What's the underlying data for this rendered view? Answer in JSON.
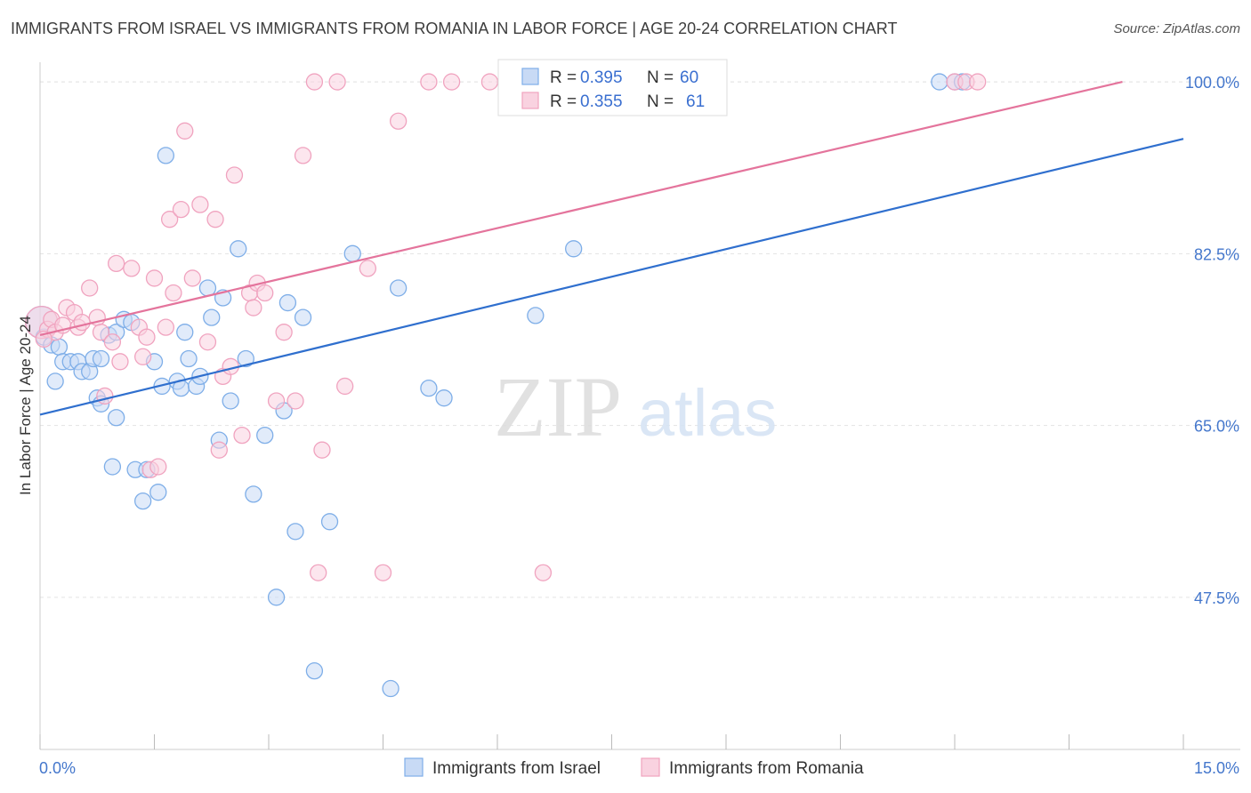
{
  "header": {
    "title": "IMMIGRANTS FROM ISRAEL VS IMMIGRANTS FROM ROMANIA IN LABOR FORCE | AGE 20-24 CORRELATION CHART",
    "source": "Source: ZipAtlas.com"
  },
  "watermark": {
    "zip": "ZIP",
    "atlas": "atlas"
  },
  "legend": {
    "r_label": "R =",
    "n_label": "N =",
    "israel": {
      "r": "0.395",
      "n": "60"
    },
    "romania": {
      "r": "0.355",
      "n": "61"
    }
  },
  "chart_data": {
    "type": "scatter",
    "title": "IMMIGRANTS FROM ISRAEL VS IMMIGRANTS FROM ROMANIA IN LABOR FORCE | AGE 20-24 CORRELATION CHART",
    "xlabel": "",
    "ylabel": "In Labor Force | Age 20-24",
    "xlim": [
      0,
      15
    ],
    "ylim": [
      32,
      102
    ],
    "x_tick_labels": [
      "0.0%",
      "15.0%"
    ],
    "y_ticks": [
      47.5,
      65.0,
      82.5,
      100.0
    ],
    "y_tick_labels": [
      "47.5%",
      "65.0%",
      "82.5%",
      "100.0%"
    ],
    "grid": true,
    "legend_position": "top-center",
    "series": [
      {
        "name": "Immigrants from Israel",
        "color": "#7eaee8",
        "fill": "#c8daf5",
        "trend_color": "#2f6fce",
        "trend": {
          "x": [
            0,
            15
          ],
          "y": [
            66.1,
            94.2
          ]
        },
        "points": [
          [
            0.02,
            75.5
          ],
          [
            0.05,
            74.0
          ],
          [
            0.15,
            73.2
          ],
          [
            0.25,
            73.0
          ],
          [
            0.2,
            69.5
          ],
          [
            0.3,
            71.5
          ],
          [
            0.4,
            71.5
          ],
          [
            0.5,
            71.5
          ],
          [
            0.55,
            70.5
          ],
          [
            0.65,
            70.5
          ],
          [
            0.7,
            71.8
          ],
          [
            0.8,
            71.8
          ],
          [
            0.75,
            67.8
          ],
          [
            0.8,
            67.2
          ],
          [
            0.9,
            74.2
          ],
          [
            1.0,
            74.5
          ],
          [
            1.0,
            65.8
          ],
          [
            0.95,
            60.8
          ],
          [
            1.1,
            75.8
          ],
          [
            1.2,
            75.5
          ],
          [
            1.25,
            60.5
          ],
          [
            1.4,
            60.5
          ],
          [
            1.35,
            57.3
          ],
          [
            1.5,
            71.5
          ],
          [
            1.55,
            58.2
          ],
          [
            1.6,
            69.0
          ],
          [
            1.65,
            92.5
          ],
          [
            1.8,
            69.5
          ],
          [
            1.85,
            68.8
          ],
          [
            1.9,
            74.5
          ],
          [
            1.95,
            71.8
          ],
          [
            2.05,
            69.0
          ],
          [
            2.1,
            70.0
          ],
          [
            2.2,
            79.0
          ],
          [
            2.25,
            76.0
          ],
          [
            2.35,
            63.5
          ],
          [
            2.4,
            78.0
          ],
          [
            2.5,
            67.5
          ],
          [
            2.6,
            83.0
          ],
          [
            2.7,
            71.8
          ],
          [
            2.8,
            58.0
          ],
          [
            2.95,
            64.0
          ],
          [
            3.1,
            47.5
          ],
          [
            3.2,
            66.5
          ],
          [
            3.25,
            77.5
          ],
          [
            3.35,
            54.2
          ],
          [
            3.45,
            76.0
          ],
          [
            3.6,
            40.0
          ],
          [
            3.8,
            55.2
          ],
          [
            4.1,
            82.5
          ],
          [
            4.6,
            38.2
          ],
          [
            4.7,
            79.0
          ],
          [
            5.1,
            68.8
          ],
          [
            5.3,
            67.8
          ],
          [
            6.5,
            76.2
          ],
          [
            7.0,
            83.0
          ],
          [
            8.4,
            100.0
          ],
          [
            11.8,
            100.0
          ],
          [
            12.0,
            100.0
          ],
          [
            12.1,
            100.0
          ]
        ]
      },
      {
        "name": "Immigrants from Romania",
        "color": "#f0a3bf",
        "fill": "#f9d2e0",
        "trend_color": "#e4749c",
        "trend": {
          "x": [
            0,
            14.2
          ],
          "y": [
            74.2,
            100.0
          ]
        },
        "points": [
          [
            0.02,
            75.5
          ],
          [
            0.1,
            74.8
          ],
          [
            0.15,
            75.8
          ],
          [
            0.2,
            74.5
          ],
          [
            0.3,
            75.2
          ],
          [
            0.35,
            77.0
          ],
          [
            0.45,
            76.5
          ],
          [
            0.5,
            75.0
          ],
          [
            0.55,
            75.5
          ],
          [
            0.65,
            79.0
          ],
          [
            0.75,
            76.0
          ],
          [
            0.8,
            74.5
          ],
          [
            0.85,
            68.0
          ],
          [
            0.95,
            73.5
          ],
          [
            1.0,
            81.5
          ],
          [
            1.05,
            71.5
          ],
          [
            1.2,
            81.0
          ],
          [
            1.3,
            75.0
          ],
          [
            1.35,
            72.0
          ],
          [
            1.4,
            74.0
          ],
          [
            1.45,
            60.5
          ],
          [
            1.5,
            80.0
          ],
          [
            1.55,
            60.8
          ],
          [
            1.65,
            75.0
          ],
          [
            1.7,
            86.0
          ],
          [
            1.75,
            78.5
          ],
          [
            1.85,
            87.0
          ],
          [
            1.9,
            95.0
          ],
          [
            2.0,
            80.0
          ],
          [
            2.1,
            87.5
          ],
          [
            2.2,
            73.5
          ],
          [
            2.3,
            86.0
          ],
          [
            2.35,
            62.5
          ],
          [
            2.4,
            70.0
          ],
          [
            2.5,
            71.0
          ],
          [
            2.55,
            90.5
          ],
          [
            2.65,
            64.0
          ],
          [
            2.75,
            78.5
          ],
          [
            2.8,
            77.0
          ],
          [
            2.85,
            79.5
          ],
          [
            2.95,
            78.5
          ],
          [
            3.1,
            67.5
          ],
          [
            3.2,
            74.5
          ],
          [
            3.35,
            67.5
          ],
          [
            3.45,
            92.5
          ],
          [
            3.6,
            100.0
          ],
          [
            3.65,
            50.0
          ],
          [
            3.7,
            62.5
          ],
          [
            3.9,
            100.0
          ],
          [
            4.0,
            69.0
          ],
          [
            4.3,
            81.0
          ],
          [
            4.5,
            50.0
          ],
          [
            4.7,
            96.0
          ],
          [
            5.1,
            100.0
          ],
          [
            5.4,
            100.0
          ],
          [
            5.9,
            100.0
          ],
          [
            6.6,
            50.0
          ],
          [
            12.0,
            100.0
          ],
          [
            12.15,
            100.0
          ],
          [
            12.3,
            100.0
          ],
          [
            0.05,
            73.8
          ]
        ]
      }
    ]
  }
}
